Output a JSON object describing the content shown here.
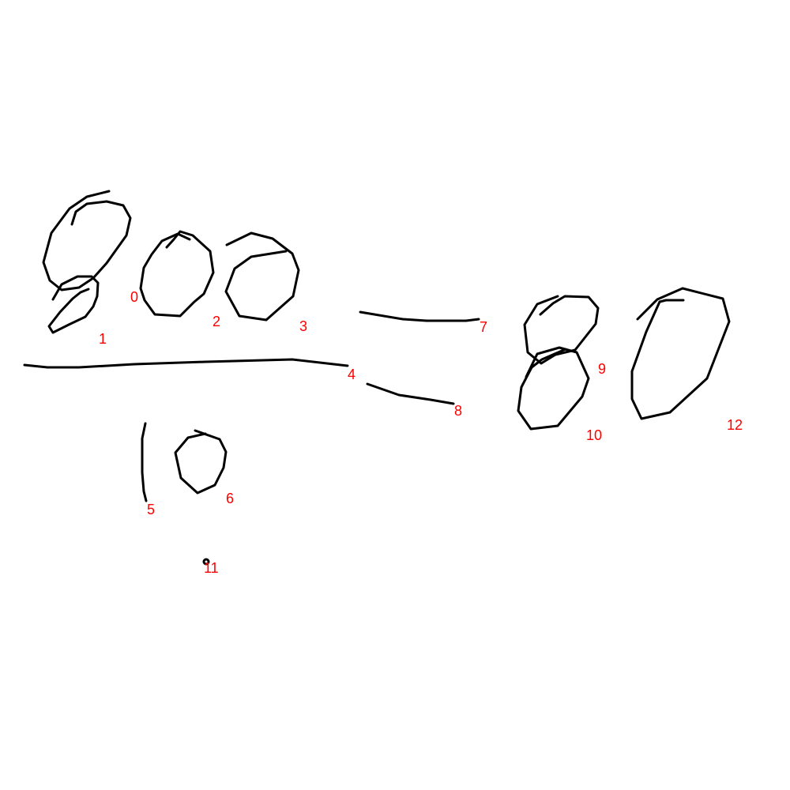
{
  "colors": {
    "stroke": "#000000",
    "label": "#ff0000",
    "background": "#ffffff"
  },
  "strokes": [
    {
      "id": "0",
      "label": "0"
    },
    {
      "id": "1",
      "label": "1"
    },
    {
      "id": "2",
      "label": "2"
    },
    {
      "id": "3",
      "label": "3"
    },
    {
      "id": "4",
      "label": "4"
    },
    {
      "id": "5",
      "label": "5"
    },
    {
      "id": "6",
      "label": "6"
    },
    {
      "id": "7",
      "label": "7"
    },
    {
      "id": "8",
      "label": "8"
    },
    {
      "id": "9",
      "label": "9"
    },
    {
      "id": "10",
      "label": "10"
    },
    {
      "id": "11",
      "label": "11"
    },
    {
      "id": "12",
      "label": "12"
    }
  ]
}
